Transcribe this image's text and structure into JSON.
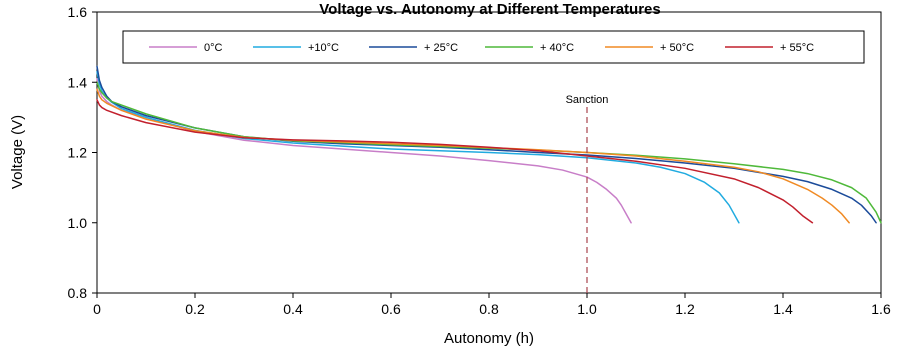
{
  "chart_data": {
    "type": "line",
    "title": "Voltage vs. Autonomy at Different Temperatures",
    "xlabel": "Autonomy (h)",
    "ylabel": "Voltage (V)",
    "xlim": [
      0,
      1.6
    ],
    "ylim": [
      0.8,
      1.6
    ],
    "xticks": [
      0,
      0.2,
      0.4,
      0.6,
      0.8,
      1.0,
      1.2,
      1.4,
      1.6
    ],
    "xtick_labels": [
      "0",
      "0.2",
      "0.4",
      "0.6",
      "0.8",
      "1.0",
      "1.2",
      "1.4",
      "1.6"
    ],
    "yticks": [
      0.8,
      1.0,
      1.2,
      1.4,
      1.6
    ],
    "ytick_labels": [
      "0.8",
      "1.0",
      "1.2",
      "1.4",
      "1.6"
    ],
    "grid": false,
    "legend_position": "top",
    "annotations": [
      {
        "text": "Sanction",
        "x": 1.0,
        "color": "#a8434e",
        "style": "dashed vertical line"
      }
    ],
    "series": [
      {
        "name": "0°C",
        "color": "#c87ec8",
        "x": [
          0,
          0.005,
          0.01,
          0.02,
          0.03,
          0.05,
          0.1,
          0.2,
          0.3,
          0.4,
          0.5,
          0.6,
          0.7,
          0.8,
          0.9,
          0.95,
          1.0,
          1.02,
          1.04,
          1.06,
          1.07,
          1.08,
          1.09
        ],
        "y": [
          1.41,
          1.375,
          1.36,
          1.345,
          1.335,
          1.32,
          1.3,
          1.26,
          1.235,
          1.22,
          1.21,
          1.2,
          1.19,
          1.177,
          1.162,
          1.15,
          1.13,
          1.115,
          1.095,
          1.07,
          1.05,
          1.025,
          1.0
        ]
      },
      {
        "name": "+10°C",
        "color": "#21abe0",
        "x": [
          0,
          0.005,
          0.01,
          0.02,
          0.03,
          0.05,
          0.1,
          0.2,
          0.3,
          0.4,
          0.5,
          0.6,
          0.7,
          0.8,
          0.9,
          1.0,
          1.1,
          1.15,
          1.2,
          1.24,
          1.27,
          1.29,
          1.31
        ],
        "y": [
          1.43,
          1.395,
          1.375,
          1.355,
          1.343,
          1.325,
          1.3,
          1.263,
          1.24,
          1.227,
          1.218,
          1.21,
          1.205,
          1.2,
          1.194,
          1.185,
          1.17,
          1.158,
          1.14,
          1.115,
          1.085,
          1.05,
          1.0
        ]
      },
      {
        "name": "+ 25°C",
        "color": "#1b4b9a",
        "x": [
          0,
          0.005,
          0.01,
          0.02,
          0.03,
          0.05,
          0.1,
          0.2,
          0.3,
          0.4,
          0.5,
          0.6,
          0.7,
          0.8,
          0.9,
          1.0,
          1.1,
          1.2,
          1.3,
          1.4,
          1.45,
          1.5,
          1.54,
          1.56,
          1.58,
          1.59
        ],
        "y": [
          1.445,
          1.405,
          1.385,
          1.36,
          1.345,
          1.33,
          1.305,
          1.27,
          1.245,
          1.232,
          1.225,
          1.22,
          1.215,
          1.208,
          1.2,
          1.193,
          1.183,
          1.17,
          1.155,
          1.132,
          1.117,
          1.095,
          1.07,
          1.05,
          1.02,
          1.0
        ]
      },
      {
        "name": "+ 40°C",
        "color": "#4fb93a",
        "x": [
          0,
          0.005,
          0.01,
          0.02,
          0.03,
          0.05,
          0.1,
          0.2,
          0.3,
          0.4,
          0.5,
          0.6,
          0.7,
          0.8,
          0.9,
          1.0,
          1.1,
          1.2,
          1.3,
          1.4,
          1.45,
          1.5,
          1.54,
          1.57,
          1.59,
          1.6
        ],
        "y": [
          1.4,
          1.38,
          1.37,
          1.355,
          1.345,
          1.335,
          1.31,
          1.27,
          1.245,
          1.233,
          1.228,
          1.222,
          1.217,
          1.212,
          1.207,
          1.2,
          1.192,
          1.182,
          1.168,
          1.152,
          1.14,
          1.122,
          1.1,
          1.07,
          1.03,
          1.0
        ]
      },
      {
        "name": "+ 50°C",
        "color": "#f08a24",
        "x": [
          0,
          0.005,
          0.01,
          0.02,
          0.05,
          0.1,
          0.2,
          0.3,
          0.4,
          0.5,
          0.6,
          0.7,
          0.8,
          0.9,
          1.0,
          1.1,
          1.2,
          1.3,
          1.35,
          1.4,
          1.45,
          1.48,
          1.5,
          1.52,
          1.535
        ],
        "y": [
          1.38,
          1.36,
          1.35,
          1.34,
          1.32,
          1.295,
          1.262,
          1.243,
          1.235,
          1.23,
          1.225,
          1.22,
          1.214,
          1.208,
          1.2,
          1.19,
          1.175,
          1.158,
          1.145,
          1.125,
          1.095,
          1.07,
          1.05,
          1.025,
          1.0
        ]
      },
      {
        "name": "+ 55°C",
        "color": "#c2202d",
        "x": [
          0,
          0.005,
          0.01,
          0.02,
          0.05,
          0.1,
          0.2,
          0.3,
          0.4,
          0.5,
          0.6,
          0.7,
          0.8,
          0.9,
          1.0,
          1.1,
          1.2,
          1.3,
          1.35,
          1.4,
          1.42,
          1.44,
          1.46
        ],
        "y": [
          1.35,
          1.335,
          1.328,
          1.32,
          1.305,
          1.285,
          1.258,
          1.242,
          1.236,
          1.233,
          1.229,
          1.223,
          1.215,
          1.205,
          1.19,
          1.175,
          1.155,
          1.125,
          1.1,
          1.065,
          1.045,
          1.02,
          1.0
        ]
      }
    ]
  }
}
